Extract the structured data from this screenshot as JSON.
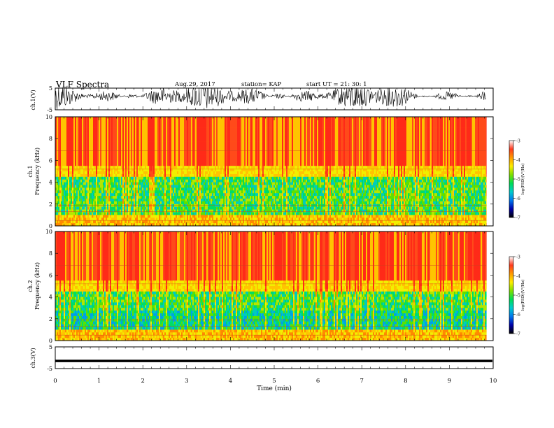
{
  "header": {
    "title": "VLF Spectra",
    "date": "Aug.29, 2017",
    "station": "station= KAP",
    "start": "start  UT =   21: 30: 1"
  },
  "chart_data": [
    {
      "type": "line",
      "ylabel": "ch.1(V)",
      "yticks": [
        "5",
        "-5"
      ],
      "ylim": [
        -5,
        5
      ],
      "grid": false
    },
    {
      "type": "heatmap",
      "ylabel": "ch.1\nFrequency (kHz)",
      "yticks": [
        "0",
        "2",
        "4",
        "6",
        "8",
        "10"
      ],
      "ylim": [
        0,
        10
      ],
      "colorbar": {
        "label": "log(PSD)(V²/Hz)",
        "ticks": [
          "-3",
          "-4",
          "-5",
          "-6",
          "-7"
        ],
        "range": [
          -7,
          -3
        ],
        "colors": [
          "#ffffff",
          "#ff3a1e",
          "#ff9a00",
          "#ffee00",
          "#7fe000",
          "#00dd55",
          "#00cccc",
          "#0077ee",
          "#0000aa",
          "#000000"
        ]
      }
    },
    {
      "type": "heatmap",
      "ylabel": "ch.2\nFrequency (kHz)",
      "yticks": [
        "0",
        "2",
        "4",
        "6",
        "8",
        "10"
      ],
      "ylim": [
        0,
        10
      ],
      "colorbar": {
        "label": "log(PSD)(V²/Hz)",
        "ticks": [
          "-3",
          "-4",
          "-5",
          "-6",
          "-7"
        ],
        "range": [
          -7,
          -3
        ]
      }
    },
    {
      "type": "line",
      "ylabel": "ch.3(V)",
      "yticks": [
        "5",
        "-5"
      ],
      "ylim": [
        -5,
        5
      ],
      "values_constant": -1.5,
      "grid": false
    }
  ],
  "xaxis": {
    "label": "Time (min)",
    "ticks": [
      "0",
      "1",
      "2",
      "3",
      "4",
      "5",
      "6",
      "7",
      "8",
      "9",
      "10"
    ],
    "range": [
      0,
      10
    ],
    "data_end": 9.85
  }
}
